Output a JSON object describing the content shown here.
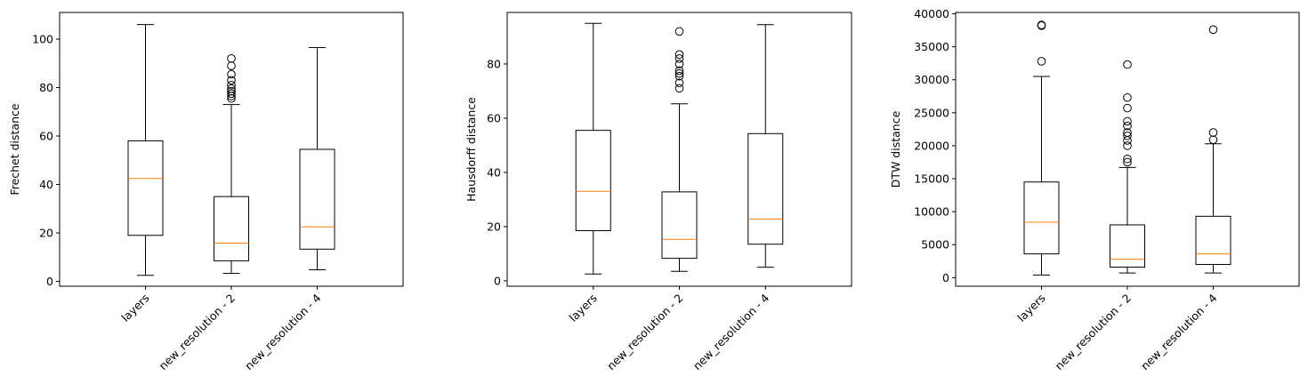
{
  "chart_data": [
    {
      "type": "box",
      "ylabel": "Frechet distance",
      "ylim": [
        -2,
        111
      ],
      "yticks": [
        0,
        20,
        40,
        60,
        80,
        100
      ],
      "categories": [
        "layers",
        "new_resolution - 2",
        "new_resolution - 4"
      ],
      "boxes": [
        {
          "whislo": 2.5,
          "q1": 19,
          "med": 42.5,
          "q3": 58,
          "whishi": 106,
          "fliers": []
        },
        {
          "whislo": 3.3,
          "q1": 8.5,
          "med": 15.8,
          "q3": 35,
          "whishi": 73,
          "fliers": [
            75.5,
            76.5,
            77.5,
            78.5,
            79.5,
            81,
            83,
            85.5,
            89,
            92
          ]
        },
        {
          "whislo": 4.8,
          "q1": 13.3,
          "med": 22.5,
          "q3": 54.5,
          "whishi": 96.5,
          "fliers": []
        }
      ]
    },
    {
      "type": "box",
      "ylabel": "Hausdorff distance",
      "ylim": [
        -2,
        99
      ],
      "yticks": [
        0,
        20,
        40,
        60,
        80
      ],
      "categories": [
        "layers",
        "new_resolution - 2",
        "new_resolution - 4"
      ],
      "boxes": [
        {
          "whislo": 2.5,
          "q1": 18.5,
          "med": 33,
          "q3": 55.5,
          "whishi": 95,
          "fliers": []
        },
        {
          "whislo": 3.5,
          "q1": 8.3,
          "med": 15.3,
          "q3": 32.8,
          "whishi": 65.3,
          "fliers": [
            71,
            73,
            75.5,
            76.5,
            77.5,
            80,
            82,
            83.5,
            92
          ]
        },
        {
          "whislo": 5,
          "q1": 13.5,
          "med": 22.8,
          "q3": 54.3,
          "whishi": 94.5,
          "fliers": []
        }
      ]
    },
    {
      "type": "box",
      "ylabel": "DTW distance",
      "ylim": [
        -1300,
        40200
      ],
      "yticks": [
        0,
        5000,
        10000,
        15000,
        20000,
        25000,
        30000,
        35000,
        40000
      ],
      "categories": [
        "layers",
        "new_resolution - 2",
        "new_resolution - 4"
      ],
      "boxes": [
        {
          "whislo": 400,
          "q1": 3600,
          "med": 8400,
          "q3": 14500,
          "whishi": 30500,
          "fliers": [
            32800,
            38200,
            38300
          ]
        },
        {
          "whislo": 700,
          "q1": 1600,
          "med": 2800,
          "q3": 8000,
          "whishi": 16700,
          "fliers": [
            17500,
            18000,
            20000,
            20800,
            21500,
            22000,
            23000,
            23700,
            25700,
            27300,
            32300
          ]
        },
        {
          "whislo": 700,
          "q1": 2000,
          "med": 3600,
          "q3": 9300,
          "whishi": 20300,
          "fliers": [
            20900,
            22000,
            37600
          ]
        }
      ]
    }
  ]
}
